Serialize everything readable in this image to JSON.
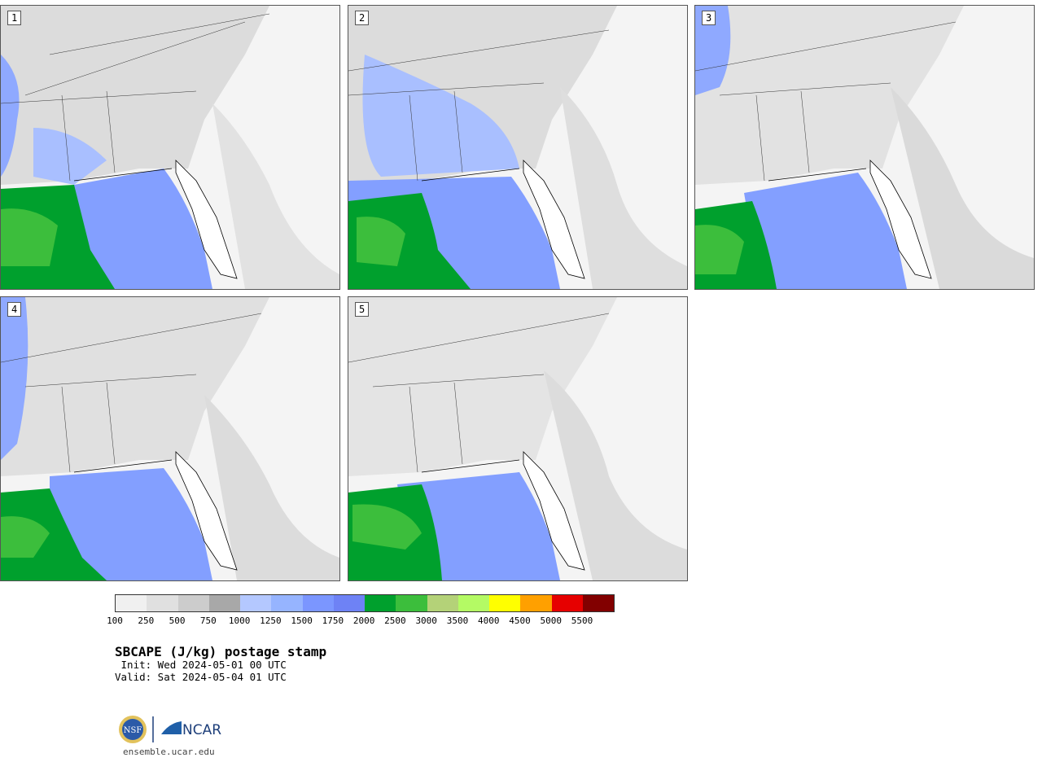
{
  "panels": [
    {
      "label": "1"
    },
    {
      "label": "2"
    },
    {
      "label": "3"
    },
    {
      "label": "4"
    },
    {
      "label": "5"
    }
  ],
  "colorbar": {
    "ticks": [
      "100",
      "250",
      "500",
      "750",
      "1000",
      "1250",
      "1500",
      "1750",
      "2000",
      "2500",
      "3000",
      "3500",
      "4000",
      "4500",
      "5000",
      "5500"
    ],
    "colors": [
      "#f0f0f0",
      "#e0e0e0",
      "#cccccc",
      "#a8a8a8",
      "#b4c8ff",
      "#96b4ff",
      "#7b96ff",
      "#6e82f5",
      "#00a02d",
      "#3cbe3c",
      "#b4d278",
      "#b4fa64",
      "#ffff00",
      "#ffa000",
      "#e60000",
      "#820000"
    ]
  },
  "title": "SBCAPE (J/kg) postage stamp",
  "init": " Init: Wed 2024-05-01 00 UTC",
  "valid": "Valid: Sat 2024-05-04 01 UTC",
  "logo": {
    "left_text": "NSF",
    "right_text": "NCAR"
  },
  "url": "ensemble.ucar.edu"
}
